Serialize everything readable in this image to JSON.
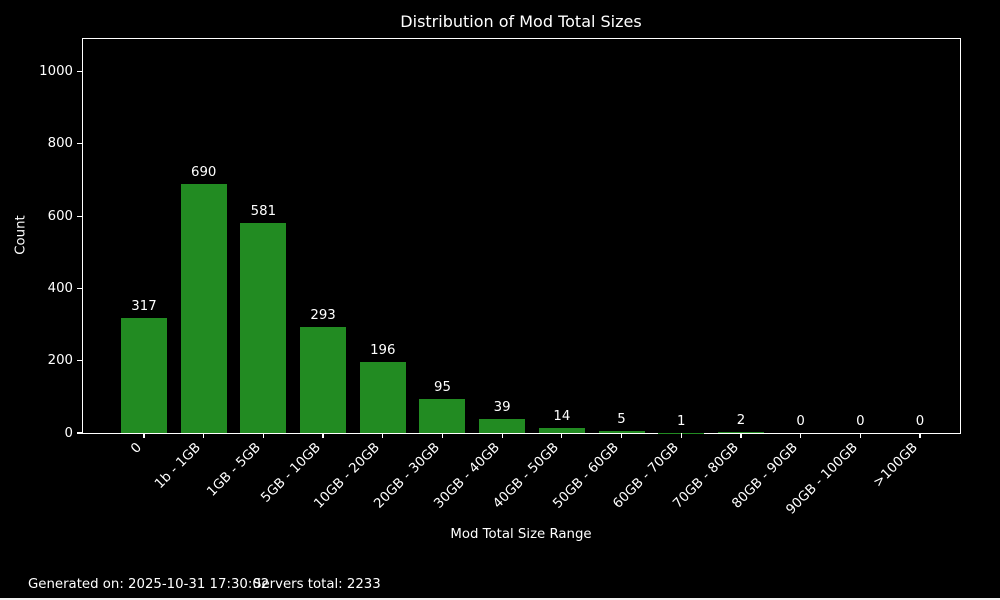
{
  "page": {
    "background_color": "#000000",
    "text_color": "#ffffff"
  },
  "title": "Distribution of Mod Total Sizes",
  "footer": {
    "generated": "Generated on: 2025-10-31 17:30:02",
    "servers_total": "Servers total: 2233"
  },
  "chart_data": {
    "type": "bar",
    "title": "Distribution of Mod Total Sizes",
    "xlabel": "Mod Total Size Range",
    "ylabel": "Count",
    "categories": [
      "0",
      "1b - 1GB",
      "1GB - 5GB",
      "5GB - 10GB",
      "10GB - 20GB",
      "20GB - 30GB",
      "30GB - 40GB",
      "40GB - 50GB",
      "50GB - 60GB",
      "60GB - 70GB",
      "70GB - 80GB",
      "80GB - 90GB",
      "90GB - 100GB",
      ">100GB"
    ],
    "values": [
      317,
      690,
      581,
      293,
      196,
      95,
      39,
      14,
      5,
      1,
      2,
      0,
      0,
      0
    ],
    "bar_labels": [
      "317",
      "690",
      "581",
      "293",
      "196",
      "95",
      "39",
      "14",
      "5",
      "1",
      "2",
      "0",
      "0",
      "0"
    ],
    "yticks": [
      0,
      200,
      400,
      600,
      800,
      1000
    ],
    "ylim": [
      0,
      1093
    ],
    "bar_color": "#228B22",
    "background": "#000000",
    "text_color": "#ffffff",
    "grid": false,
    "legend": "none",
    "x_tick_rotation_deg": 45
  }
}
